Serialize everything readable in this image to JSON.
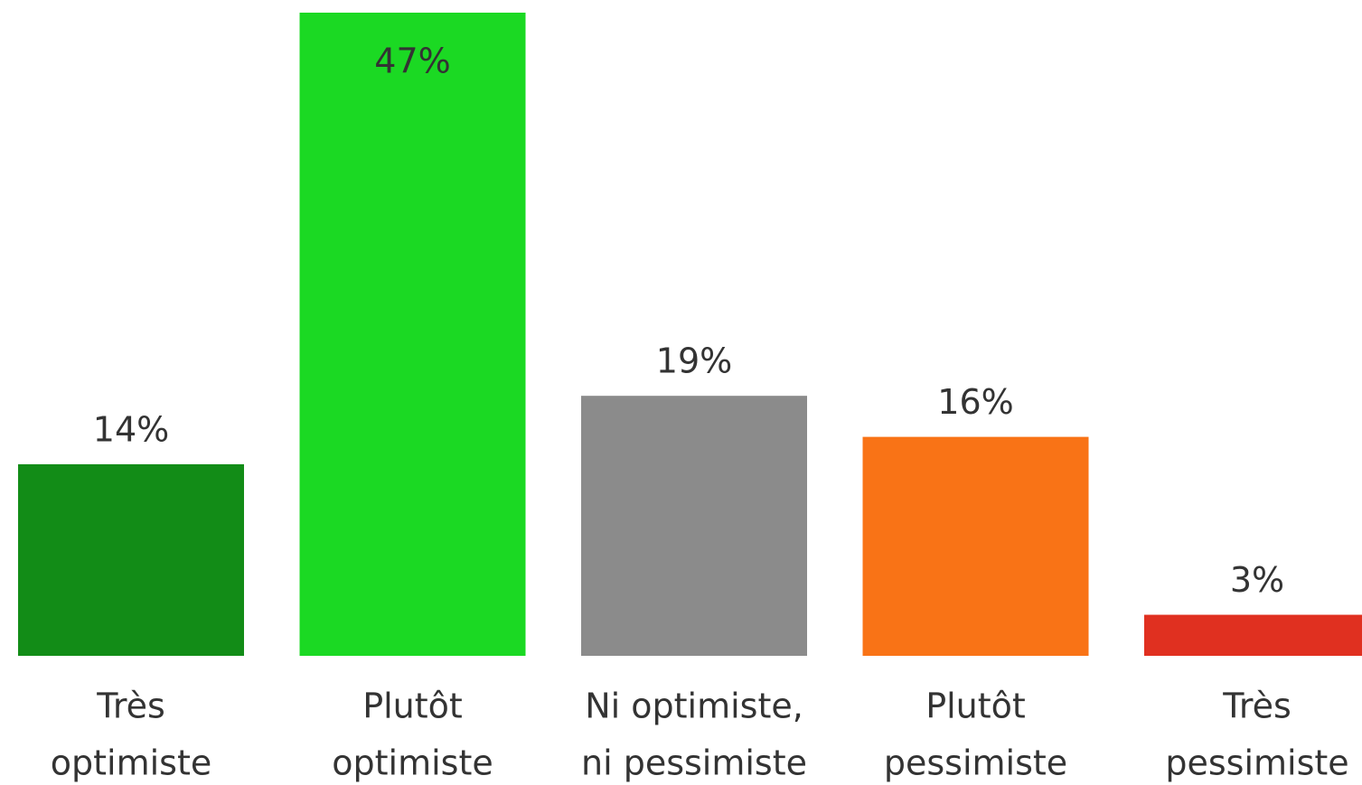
{
  "chart_data": {
    "type": "bar",
    "categories": [
      [
        "Très",
        "optimiste"
      ],
      [
        "Plutôt",
        "optimiste"
      ],
      [
        "Ni optimiste,",
        "ni pessimiste"
      ],
      [
        "Plutôt",
        "pessimiste"
      ],
      [
        "Très",
        "pessimiste"
      ]
    ],
    "values": [
      14,
      47,
      19,
      16,
      3
    ],
    "value_labels": [
      "14%",
      "47%",
      "19%",
      "16%",
      "3%"
    ],
    "colors": [
      "#128c17",
      "#1bd923",
      "#8b8b8b",
      "#f97316",
      "#e03020"
    ],
    "ylim": [
      0,
      47
    ]
  }
}
